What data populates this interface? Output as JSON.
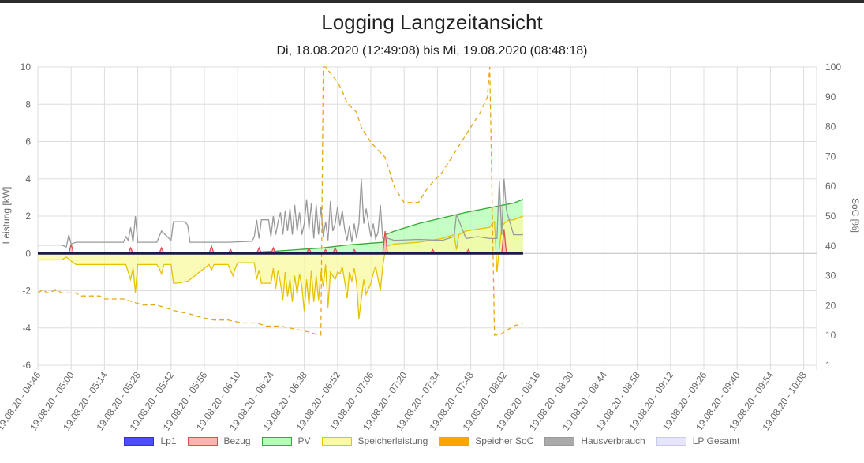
{
  "chart_data": {
    "type": "line",
    "title": "Logging Langzeitansicht",
    "subtitle": "Di, 18.08.2020 (12:49:08) bis Mi, 19.08.2020 (08:48:18)",
    "ylabel": "Leistung [kW]",
    "y2label": "SoC [%]",
    "ylim": [
      -6,
      10
    ],
    "y2lim": [
      1,
      100
    ],
    "y_ticks": [
      "10",
      "8",
      "6",
      "4",
      "2",
      "0",
      "-2",
      "-4",
      "-6"
    ],
    "y2_ticks": [
      "100",
      "90",
      "80",
      "70",
      "60",
      "50",
      "40",
      "30",
      "20",
      "10",
      "1"
    ],
    "x_ticks": [
      "19.08.20 - 04:46",
      "19.08.20 - 05:00",
      "19.08.20 - 05:14",
      "19.08.20 - 05:28",
      "19.08.20 - 05:42",
      "19.08.20 - 05:56",
      "19.08.20 - 06:10",
      "19.08.20 - 06:24",
      "19.08.20 - 06:38",
      "19.08.20 - 06:52",
      "19.08.20 - 07:06",
      "19.08.20 - 07:20",
      "19.08.20 - 07:34",
      "19.08.20 - 07:48",
      "19.08.20 - 08:02",
      "19.08.20 - 08:16",
      "19.08.20 - 08:30",
      "19.08.20 - 08:44",
      "19.08.20 - 08:58",
      "19.08.20 - 09:12",
      "19.08.20 - 09:26",
      "19.08.20 - 09:40",
      "19.08.20 - 09:54",
      "19.08.20 - 10:08"
    ],
    "x_unit": "minutes since 04:46",
    "series": [
      {
        "name": "Lp1",
        "color": "#4d4dff",
        "border": "#3333cc",
        "axis": "left",
        "fill": false,
        "dash": false,
        "x": [
          0,
          204
        ],
        "values": [
          0,
          0
        ]
      },
      {
        "name": "Bezug",
        "color": "#ffb3b3",
        "border": "#e05050",
        "axis": "left",
        "fill": true,
        "dash": false,
        "x": [
          0,
          13,
          14,
          15,
          38,
          39,
          40,
          51,
          52,
          53,
          72,
          73,
          74,
          80,
          81,
          82,
          92,
          93,
          94,
          98,
          99,
          100,
          113,
          114,
          115,
          120,
          121,
          122,
          124,
          125,
          126,
          132,
          133,
          134,
          145,
          146,
          147,
          165,
          166,
          167,
          180,
          181,
          182,
          195,
          196,
          197,
          200,
          204
        ],
        "values": [
          0,
          0,
          0.5,
          0,
          0,
          0.3,
          0,
          0,
          0.3,
          0,
          0,
          0.4,
          0,
          0,
          0.2,
          0,
          0,
          0.3,
          0,
          0,
          0.3,
          0,
          0,
          0.3,
          0,
          0,
          0.2,
          0,
          0,
          0.3,
          0,
          0,
          0.2,
          0,
          0,
          1.2,
          0,
          0,
          0.2,
          0,
          0,
          0.2,
          0,
          0,
          1.3,
          0,
          0,
          0
        ]
      },
      {
        "name": "PV",
        "color": "#b3ffb3",
        "border": "#33aa33",
        "axis": "left",
        "fill": true,
        "dash": false,
        "x": [
          0,
          80,
          84,
          100,
          120,
          130,
          140,
          145,
          146,
          150,
          160,
          170,
          180,
          190,
          196,
          200,
          204
        ],
        "values": [
          0,
          0,
          0.02,
          0.12,
          0.3,
          0.45,
          0.55,
          0.6,
          1.0,
          1.2,
          1.6,
          1.9,
          2.2,
          2.45,
          2.6,
          2.7,
          2.9
        ]
      },
      {
        "name": "Speicherleistung",
        "color": "#fafaa0",
        "border": "#e6c200",
        "axis": "left",
        "fill": true,
        "dash": false,
        "x": [
          0,
          10,
          12,
          14,
          16,
          37,
          38,
          39,
          40,
          41,
          42,
          50,
          51,
          52,
          53,
          56,
          57,
          58,
          63,
          72,
          73,
          74,
          80,
          82,
          83,
          84,
          91,
          92,
          93,
          94,
          98,
          99,
          100,
          101,
          102,
          103,
          104,
          105,
          106,
          107,
          108,
          109,
          110,
          111,
          112,
          113,
          114,
          115,
          116,
          117,
          118,
          119,
          120,
          121,
          122,
          123,
          124,
          125,
          126,
          127,
          128,
          129,
          130,
          131,
          132,
          133,
          134,
          135,
          137,
          138,
          140,
          141,
          142,
          144,
          145,
          146,
          147,
          150,
          160,
          170,
          175,
          176,
          177,
          180,
          185,
          190,
          191,
          192,
          193,
          194,
          195,
          196,
          198,
          200,
          204
        ],
        "values": [
          -0.35,
          -0.35,
          -0.2,
          -0.4,
          -0.6,
          -0.6,
          -1.0,
          -1.4,
          -0.8,
          -2.1,
          -0.6,
          -0.6,
          -0.8,
          -1.1,
          -0.6,
          -0.6,
          -1.6,
          -1.6,
          -1.5,
          -0.6,
          -0.9,
          -0.6,
          -0.6,
          -1.2,
          -0.8,
          -0.5,
          -0.5,
          -1.4,
          -0.9,
          -1.6,
          -1.6,
          -0.8,
          -1.9,
          -0.9,
          -1.6,
          -2.5,
          -1.0,
          -2.3,
          -1.4,
          -2.6,
          -1.2,
          -2.2,
          -1.1,
          -1.8,
          -3.1,
          -1.4,
          -2.8,
          -0.9,
          -2.6,
          -1.2,
          -2.5,
          -1.0,
          -1.8,
          -0.6,
          -2.9,
          -1.0,
          -1.2,
          -1.4,
          -1.0,
          -1.1,
          -0.7,
          -1.5,
          -2.4,
          -1.0,
          -1.5,
          -0.8,
          -1.6,
          -3.5,
          -1.4,
          -2.2,
          -1.6,
          -1.1,
          -0.7,
          -2.0,
          -0.7,
          0.1,
          0.4,
          0.5,
          0.6,
          0.8,
          1.0,
          0.2,
          1.0,
          1.2,
          1.3,
          1.4,
          1.6,
          1.7,
          -1.0,
          0.2,
          1.4,
          1.6,
          1.8,
          1.8,
          2.0
        ]
      },
      {
        "name": "Speicher SoC",
        "color": "#ffa500",
        "border": "#e6a817",
        "axis": "right",
        "fill": false,
        "dash": true,
        "x": [
          0,
          2,
          4,
          8,
          10,
          16,
          18,
          26,
          28,
          36,
          40,
          44,
          50,
          54,
          58,
          64,
          68,
          74,
          80,
          86,
          92,
          96,
          102,
          108,
          114,
          118,
          119,
          120,
          121,
          126,
          128,
          130,
          134,
          136,
          140,
          146,
          148,
          150,
          154,
          156,
          160,
          164,
          170,
          174,
          178,
          182,
          186,
          189,
          190,
          192,
          194,
          196,
          198,
          200,
          204
        ],
        "values": [
          25,
          26,
          25,
          26,
          25,
          25,
          24,
          24,
          23,
          23,
          22,
          21,
          21,
          20,
          19,
          18,
          17,
          16,
          16,
          15,
          15,
          14,
          14,
          13,
          12,
          11,
          11,
          100,
          100,
          95,
          92,
          88,
          85,
          80,
          75,
          70,
          65,
          60,
          55,
          55,
          55,
          60,
          65,
          70,
          75,
          80,
          85,
          90,
          100,
          11,
          11,
          12,
          13,
          14,
          15
        ]
      },
      {
        "name": "Hausverbrauch",
        "color": "#aaaaaa",
        "border": "#999999",
        "axis": "left",
        "fill": false,
        "dash": false,
        "x": [
          0,
          10,
          12,
          13,
          14,
          16,
          36,
          37,
          38,
          39,
          40,
          41,
          42,
          50,
          51,
          52,
          56,
          57,
          62,
          63,
          64,
          72,
          80,
          90,
          91,
          92,
          93,
          94,
          97,
          98,
          99,
          100,
          101,
          102,
          103,
          104,
          105,
          106,
          107,
          108,
          109,
          110,
          111,
          112,
          113,
          114,
          115,
          116,
          117,
          118,
          119,
          120,
          121,
          122,
          123,
          124,
          125,
          126,
          127,
          128,
          129,
          130,
          131,
          132,
          133,
          134,
          135,
          136,
          137,
          138,
          140,
          141,
          142,
          143,
          144,
          145,
          146,
          150,
          160,
          170,
          175,
          176,
          180,
          185,
          190,
          193,
          194,
          195,
          196,
          197,
          200,
          204
        ],
        "values": [
          0.45,
          0.45,
          0.35,
          1.0,
          0.5,
          0.6,
          0.6,
          0.9,
          0.7,
          1.4,
          0.6,
          2.0,
          0.6,
          0.6,
          0.9,
          1.2,
          0.7,
          1.7,
          1.7,
          1.5,
          0.6,
          0.6,
          0.6,
          0.65,
          0.9,
          1.8,
          0.8,
          1.8,
          1.8,
          0.9,
          2.0,
          1.0,
          1.7,
          2.2,
          1.0,
          2.3,
          1.2,
          2.4,
          1.0,
          2.6,
          1.2,
          2.2,
          1.0,
          1.6,
          2.9,
          1.3,
          2.7,
          0.8,
          2.6,
          1.0,
          2.5,
          0.9,
          1.7,
          0.7,
          2.8,
          1.2,
          1.6,
          2.5,
          1.5,
          2.3,
          1.3,
          0.7,
          1.5,
          0.6,
          1.6,
          0.8,
          1.6,
          4.0,
          1.6,
          2.4,
          0.9,
          1.6,
          0.8,
          1.1,
          2.6,
          0.8,
          0.85,
          0.7,
          0.75,
          0.7,
          0.9,
          2.1,
          0.8,
          0.9,
          0.8,
          0.8,
          3.9,
          1.0,
          4.0,
          2.3,
          1.0,
          1.0
        ]
      },
      {
        "name": "LP Gesamt",
        "color": "#e6e6fa",
        "border": "#c8c8f0",
        "axis": "left",
        "fill": false,
        "dash": false,
        "x": [],
        "values": []
      }
    ]
  }
}
